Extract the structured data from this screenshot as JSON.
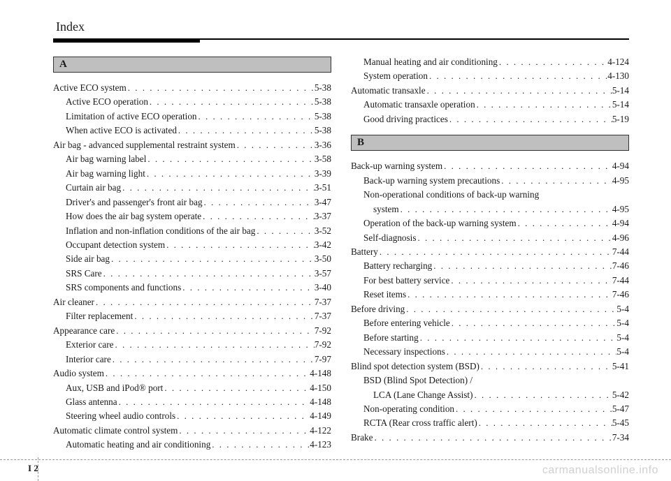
{
  "title": "Index",
  "watermark": "carmanualsonline.info",
  "footer": {
    "section": "I",
    "page": "2"
  },
  "letters": {
    "a": "A",
    "b": "B"
  },
  "left": [
    {
      "label": "Active ECO system",
      "page": "5-38",
      "level": 0
    },
    {
      "label": "Active ECO operation",
      "page": "5-38",
      "level": 1
    },
    {
      "label": "Limitation of active ECO operation",
      "page": "5-38",
      "level": 1
    },
    {
      "label": "When active ECO is activated",
      "page": "5-38",
      "level": 1
    },
    {
      "label": "Air bag - advanced supplemental restraint system",
      "page": "3-36",
      "level": 0
    },
    {
      "label": "Air bag warning label",
      "page": "3-58",
      "level": 1
    },
    {
      "label": "Air bag warning light",
      "page": "3-39",
      "level": 1
    },
    {
      "label": "Curtain air bag",
      "page": "3-51",
      "level": 1
    },
    {
      "label": "Driver's and passenger's front air bag",
      "page": "3-47",
      "level": 1
    },
    {
      "label": "How does the air bag system operate",
      "page": "3-37",
      "level": 1
    },
    {
      "label": "Inflation and non-inflation conditions of the air bag",
      "page": "3-52",
      "level": 1
    },
    {
      "label": "Occupant detection system",
      "page": "3-42",
      "level": 1
    },
    {
      "label": "Side air bag",
      "page": "3-50",
      "level": 1
    },
    {
      "label": "SRS Care",
      "page": "3-57",
      "level": 1
    },
    {
      "label": "SRS components and functions",
      "page": "3-40",
      "level": 1
    },
    {
      "label": "Air cleaner",
      "page": "7-37",
      "level": 0
    },
    {
      "label": "Filter replacement",
      "page": "7-37",
      "level": 1
    },
    {
      "label": "Appearance care",
      "page": "7-92",
      "level": 0
    },
    {
      "label": "Exterior care",
      "page": "7-92",
      "level": 1
    },
    {
      "label": "Interior care",
      "page": "7-97",
      "level": 1
    },
    {
      "label": "Audio system",
      "page": "4-148",
      "level": 0
    },
    {
      "label": "Aux, USB and iPod® port",
      "page": "4-150",
      "level": 1
    },
    {
      "label": "Glass antenna",
      "page": "4-148",
      "level": 1
    },
    {
      "label": "Steering wheel audio controls",
      "page": "4-149",
      "level": 1
    },
    {
      "label": "Automatic climate control system",
      "page": "4-122",
      "level": 0
    },
    {
      "label": "Automatic heating and air conditioning",
      "page": "4-123",
      "level": 1
    }
  ],
  "rightTop": [
    {
      "label": "Manual heating and air conditioning",
      "page": "4-124",
      "level": 1
    },
    {
      "label": "System operation",
      "page": "4-130",
      "level": 1
    },
    {
      "label": "Automatic transaxle",
      "page": "5-14",
      "level": 0
    },
    {
      "label": "Automatic transaxle operation",
      "page": "5-14",
      "level": 1
    },
    {
      "label": "Good driving practices",
      "page": "5-19",
      "level": 1
    }
  ],
  "rightB": [
    {
      "label": "Back-up warning system",
      "page": "4-94",
      "level": 0
    },
    {
      "label": "Back-up warning system precautions",
      "page": "4-95",
      "level": 1
    },
    {
      "label": "Non-operational conditions of back-up warning",
      "page": "",
      "level": 1,
      "nodots": true
    },
    {
      "label": "system",
      "page": "4-95",
      "level": 2
    },
    {
      "label": "Operation of the back-up warning system",
      "page": "4-94",
      "level": 1
    },
    {
      "label": "Self-diagnosis",
      "page": "4-96",
      "level": 1
    },
    {
      "label": "Battery",
      "page": "7-44",
      "level": 0
    },
    {
      "label": "Battery recharging",
      "page": "7-46",
      "level": 1
    },
    {
      "label": "For best battery service",
      "page": "7-44",
      "level": 1
    },
    {
      "label": "Reset items",
      "page": "7-46",
      "level": 1
    },
    {
      "label": "Before driving",
      "page": "5-4",
      "level": 0
    },
    {
      "label": "Before entering vehicle",
      "page": "5-4",
      "level": 1
    },
    {
      "label": "Before starting",
      "page": "5-4",
      "level": 1
    },
    {
      "label": "Necessary inspections",
      "page": "5-4",
      "level": 1
    },
    {
      "label": "Blind spot detection system (BSD)",
      "page": "5-41",
      "level": 0
    },
    {
      "label": "BSD (Blind Spot Detection) /",
      "page": "",
      "level": 1,
      "nodots": true
    },
    {
      "label": "LCA (Lane Change Assist)",
      "page": "5-42",
      "level": 2
    },
    {
      "label": "Non-operating condition",
      "page": "5-47",
      "level": 1
    },
    {
      "label": "RCTA (Rear cross traffic alert)",
      "page": "5-45",
      "level": 1
    },
    {
      "label": "Brake",
      "page": "7-34",
      "level": 0
    }
  ]
}
